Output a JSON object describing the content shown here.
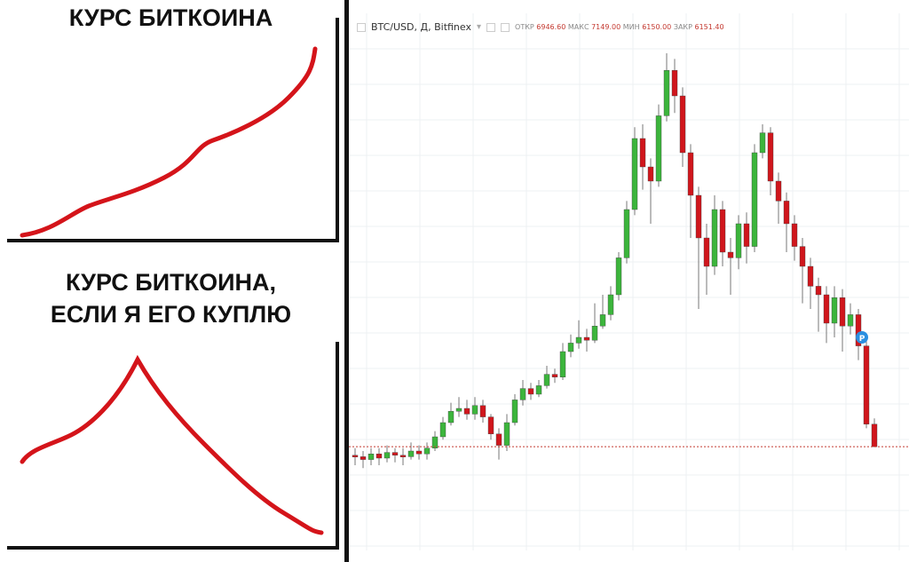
{
  "meme": {
    "top_title": "КУРС БИТКОИНА",
    "bottom_title_line1": "КУРС БИТКОИНА,",
    "bottom_title_line2": "ЕСЛИ Я ЕГО КУПЛЮ",
    "curve_color": "#d4141a"
  },
  "chart_header": {
    "symbol": "BTC/USD, Д, Bitfinex",
    "open_label": "ОТКР",
    "open": "6946.60",
    "high_label": "МАКС",
    "high": "7149.00",
    "low_label": "МИН",
    "low": "6150.00",
    "close_label": "ЗАКР",
    "close": "6151.40",
    "badge": "P"
  },
  "chart_data": {
    "type": "candlestick",
    "up_color": "#3cb53c",
    "down_color": "#d0161c",
    "grid": true,
    "last_price_line": 6151.4,
    "candles": [
      [
        5850,
        6100,
        5500,
        5800
      ],
      [
        5800,
        6000,
        5400,
        5700
      ],
      [
        5700,
        6100,
        5500,
        5900
      ],
      [
        5900,
        6100,
        5500,
        5750
      ],
      [
        5750,
        6200,
        5600,
        5950
      ],
      [
        5950,
        6100,
        5600,
        5850
      ],
      [
        5850,
        6100,
        5500,
        5800
      ],
      [
        5800,
        6300,
        5700,
        6000
      ],
      [
        6000,
        6200,
        5700,
        5900
      ],
      [
        5900,
        6300,
        5700,
        6100
      ],
      [
        6100,
        6700,
        6000,
        6500
      ],
      [
        6500,
        7200,
        6400,
        7000
      ],
      [
        7000,
        7700,
        6900,
        7400
      ],
      [
        7400,
        7900,
        7200,
        7500
      ],
      [
        7500,
        7800,
        7100,
        7300
      ],
      [
        7300,
        7900,
        7100,
        7600
      ],
      [
        7600,
        7800,
        7000,
        7200
      ],
      [
        7200,
        7300,
        6400,
        6600
      ],
      [
        6600,
        6800,
        5700,
        6200
      ],
      [
        6200,
        7300,
        6000,
        7000
      ],
      [
        7000,
        8000,
        6900,
        7800
      ],
      [
        7800,
        8500,
        7600,
        8200
      ],
      [
        8200,
        8400,
        7800,
        8000
      ],
      [
        8000,
        8500,
        7900,
        8300
      ],
      [
        8300,
        9000,
        8200,
        8700
      ],
      [
        8700,
        8900,
        8400,
        8600
      ],
      [
        8600,
        9800,
        8500,
        9500
      ],
      [
        9500,
        10100,
        9300,
        9800
      ],
      [
        9800,
        10600,
        9600,
        10000
      ],
      [
        10000,
        10300,
        9500,
        9900
      ],
      [
        9900,
        11200,
        9800,
        10400
      ],
      [
        10400,
        11500,
        10300,
        10800
      ],
      [
        10800,
        11800,
        10600,
        11500
      ],
      [
        11500,
        13000,
        11300,
        12800
      ],
      [
        12800,
        14800,
        12600,
        14500
      ],
      [
        14500,
        17400,
        14300,
        17000
      ],
      [
        17000,
        17500,
        15200,
        16000
      ],
      [
        16000,
        16300,
        14000,
        15500
      ],
      [
        15500,
        18200,
        15300,
        17800
      ],
      [
        17800,
        20000,
        17600,
        19400
      ],
      [
        19400,
        19800,
        17900,
        18500
      ],
      [
        18500,
        18800,
        16000,
        16500
      ],
      [
        16500,
        16800,
        13500,
        15000
      ],
      [
        15000,
        15300,
        11000,
        13500
      ],
      [
        13500,
        14000,
        11500,
        12500
      ],
      [
        12500,
        15000,
        12200,
        14500
      ],
      [
        14500,
        14800,
        12500,
        13000
      ],
      [
        13000,
        13500,
        11500,
        12800
      ],
      [
        12800,
        14300,
        12400,
        14000
      ],
      [
        14000,
        14400,
        12600,
        13200
      ],
      [
        13200,
        16800,
        13000,
        16500
      ],
      [
        16500,
        17500,
        16300,
        17200
      ],
      [
        17200,
        17400,
        15000,
        15500
      ],
      [
        15500,
        15800,
        14000,
        14800
      ],
      [
        14800,
        15100,
        13000,
        14000
      ],
      [
        14000,
        14300,
        12700,
        13200
      ],
      [
        13200,
        13500,
        11200,
        12500
      ],
      [
        12500,
        12800,
        11000,
        11800
      ],
      [
        11800,
        12100,
        10200,
        11500
      ],
      [
        11500,
        11800,
        9800,
        10500
      ],
      [
        10500,
        11800,
        10000,
        11400
      ],
      [
        11400,
        11700,
        9500,
        10400
      ],
      [
        10400,
        11200,
        10100,
        10800
      ],
      [
        10800,
        11000,
        9200,
        9700
      ],
      [
        9700,
        9900,
        6800,
        6946.6
      ],
      [
        6946.6,
        7149,
        6150,
        6151.4
      ]
    ]
  }
}
